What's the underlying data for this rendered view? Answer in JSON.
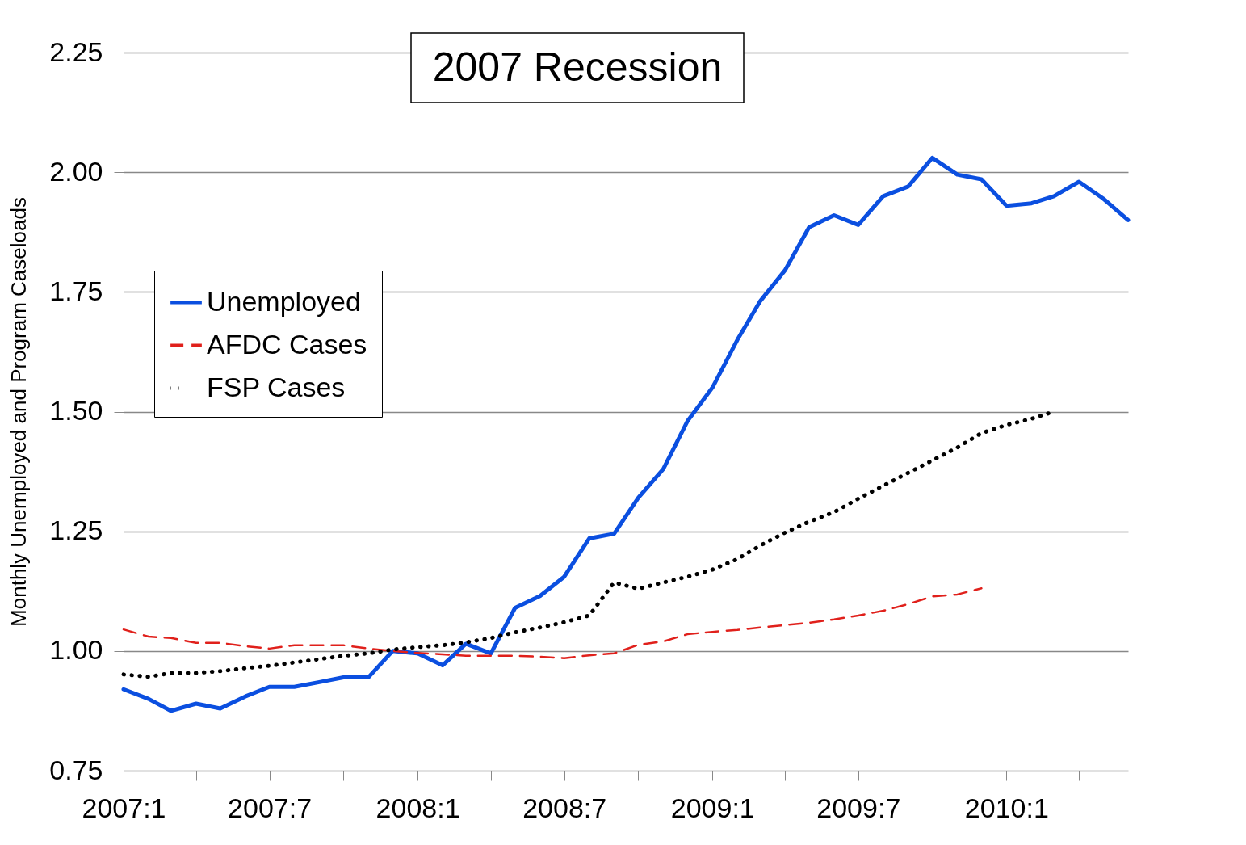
{
  "chart_data": {
    "type": "line",
    "ylabel": "Monthly Unemployed and Program Caseloads",
    "annotations": [
      "2007 Recession"
    ],
    "x": [
      "2007-01",
      "2007-02",
      "2007-03",
      "2007-04",
      "2007-05",
      "2007-06",
      "2007-07",
      "2007-08",
      "2007-09",
      "2007-10",
      "2007-11",
      "2007-12",
      "2008-01",
      "2008-02",
      "2008-03",
      "2008-04",
      "2008-05",
      "2008-06",
      "2008-07",
      "2008-08",
      "2008-09",
      "2008-10",
      "2008-11",
      "2008-12",
      "2009-01",
      "2009-02",
      "2009-03",
      "2009-04",
      "2009-05",
      "2009-06",
      "2009-07",
      "2009-08",
      "2009-09",
      "2009-10",
      "2009-11",
      "2009-12",
      "2010-01",
      "2010-02",
      "2010-03",
      "2010-04",
      "2010-05",
      "2010-06"
    ],
    "series": [
      {
        "name": "Unemployed",
        "color": "#0b4fe0",
        "line_style": "solid",
        "values": [
          0.92,
          0.9,
          0.875,
          0.89,
          0.88,
          0.905,
          0.925,
          0.925,
          0.935,
          0.945,
          0.945,
          1.0,
          0.995,
          0.97,
          1.015,
          0.995,
          1.09,
          1.115,
          1.155,
          1.235,
          1.245,
          1.32,
          1.38,
          1.48,
          1.55,
          1.65,
          1.73,
          1.795,
          1.885,
          1.91,
          1.89,
          1.95,
          1.97,
          2.03,
          1.995,
          1.985,
          1.93,
          1.935,
          1.95,
          1.98,
          1.945,
          1.9
        ]
      },
      {
        "name": "AFDC Cases",
        "color": "#e0201b",
        "line_style": "dashed",
        "values": [
          1.045,
          1.03,
          1.027,
          1.017,
          1.017,
          1.01,
          1.005,
          1.012,
          1.012,
          1.012,
          1.005,
          1.0,
          0.996,
          0.993,
          0.99,
          0.99,
          0.99,
          0.988,
          0.985,
          0.991,
          0.995,
          1.013,
          1.02,
          1.035,
          1.04,
          1.044,
          1.049,
          1.054,
          1.059,
          1.066,
          1.074,
          1.084,
          1.098,
          1.114,
          1.118,
          1.131,
          null,
          null,
          null,
          null,
          null,
          null
        ]
      },
      {
        "name": "FSP Cases",
        "color": "#000000",
        "line_style": "dotted",
        "values": [
          0.951,
          0.946,
          0.954,
          0.954,
          0.958,
          0.964,
          0.969,
          0.976,
          0.983,
          0.99,
          0.995,
          1.003,
          1.008,
          1.012,
          1.018,
          1.027,
          1.039,
          1.049,
          1.06,
          1.074,
          1.143,
          1.13,
          1.143,
          1.155,
          1.17,
          1.192,
          1.22,
          1.247,
          1.27,
          1.29,
          1.318,
          1.345,
          1.372,
          1.398,
          1.425,
          1.455,
          1.472,
          1.485,
          1.5,
          null,
          null,
          null
        ]
      }
    ],
    "xlim": [
      "2007-01",
      "2010-06"
    ],
    "xticks": [
      {
        "value": "2007-01",
        "label": "2007:1"
      },
      {
        "value": "2007-04",
        "label": null
      },
      {
        "value": "2007-07",
        "label": "2007:7"
      },
      {
        "value": "2007-10",
        "label": null
      },
      {
        "value": "2008-01",
        "label": "2008:1"
      },
      {
        "value": "2008-04",
        "label": null
      },
      {
        "value": "2008-07",
        "label": "2008:7"
      },
      {
        "value": "2008-10",
        "label": null
      },
      {
        "value": "2009-01",
        "label": "2009:1"
      },
      {
        "value": "2009-04",
        "label": null
      },
      {
        "value": "2009-07",
        "label": "2009:7"
      },
      {
        "value": "2009-10",
        "label": null
      },
      {
        "value": "2010-01",
        "label": "2010:1"
      },
      {
        "value": "2010-04",
        "label": null
      }
    ],
    "ylim": [
      0.75,
      2.25
    ],
    "yticks": [
      {
        "value": 0.75,
        "label": "0.75"
      },
      {
        "value": 1.0,
        "label": "1.00"
      },
      {
        "value": 1.25,
        "label": "1.25"
      },
      {
        "value": 1.5,
        "label": "1.50"
      },
      {
        "value": 1.75,
        "label": "1.75"
      },
      {
        "value": 2.0,
        "label": "2.00"
      },
      {
        "value": 2.25,
        "label": "2.25"
      }
    ],
    "grid": "y",
    "legend": "top left",
    "marker": "none"
  }
}
